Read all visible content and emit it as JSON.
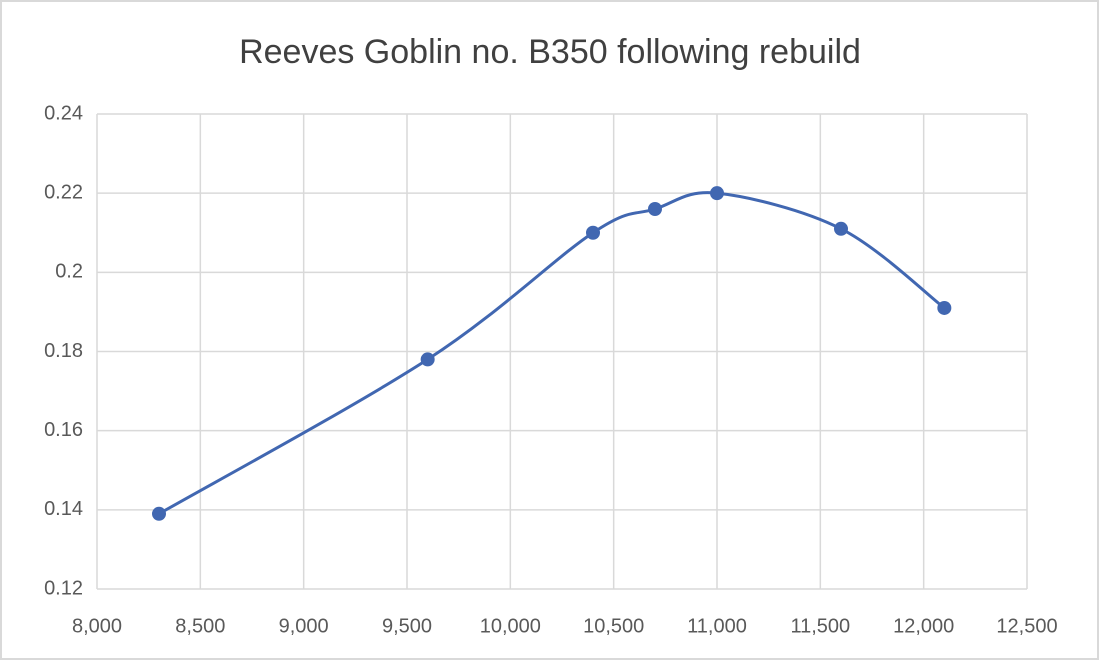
{
  "chart_data": {
    "type": "line",
    "smooth": true,
    "title": "Reeves Goblin no. B350 following rebuild",
    "x": [
      8300,
      9600,
      10400,
      10700,
      11000,
      11600,
      12100
    ],
    "values": [
      0.139,
      0.178,
      0.21,
      0.216,
      0.22,
      0.211,
      0.191
    ],
    "color": "#4167b1",
    "xlim": [
      8000,
      12500
    ],
    "xticks": [
      {
        "value": 8000,
        "label": "8,000"
      },
      {
        "value": 8500,
        "label": "8,500"
      },
      {
        "value": 9000,
        "label": "9,000"
      },
      {
        "value": 9500,
        "label": "9,500"
      },
      {
        "value": 10000,
        "label": "10,000"
      },
      {
        "value": 10500,
        "label": "10,500"
      },
      {
        "value": 11000,
        "label": "11,000"
      },
      {
        "value": 11500,
        "label": "11,500"
      },
      {
        "value": 12000,
        "label": "12,000"
      },
      {
        "value": 12500,
        "label": "12,500"
      }
    ],
    "ylim": [
      0.12,
      0.24
    ],
    "yticks": [
      0.12,
      0.14,
      0.16,
      0.18,
      0.2,
      0.22,
      0.24
    ],
    "grid": true
  }
}
